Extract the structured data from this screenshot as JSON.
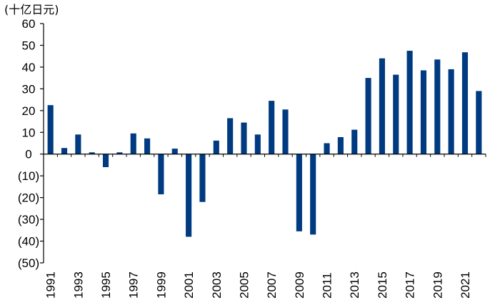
{
  "colors": {
    "bar": "#003A80",
    "axis": "#000000",
    "text": "#000000",
    "background": "#ffffff"
  },
  "chart_data": {
    "type": "bar",
    "title": "",
    "unit_label": "(十亿日元)",
    "xlabel": "",
    "ylabel": "",
    "ylim": [
      -50,
      60
    ],
    "y_ticks": [
      60,
      50,
      40,
      30,
      20,
      10,
      0,
      -10,
      -20,
      -30,
      -40,
      -50
    ],
    "y_tick_labels": [
      "60",
      "50",
      "40",
      "30",
      "20",
      "10",
      "0",
      "(10)",
      "(20)",
      "(30)",
      "(40)",
      "(50)"
    ],
    "grid": false,
    "legend": "none",
    "categories": [
      "1991",
      "1992",
      "1993",
      "1994",
      "1995",
      "1996",
      "1997",
      "1998",
      "1999",
      "2000",
      "2001",
      "2002",
      "2003",
      "2004",
      "2005",
      "2006",
      "2007",
      "2008",
      "2009",
      "2010",
      "2011",
      "2012",
      "2013",
      "2014",
      "2015",
      "2016",
      "2017",
      "2018",
      "2019",
      "2020",
      "2021",
      "2022"
    ],
    "x_tick_labels": [
      "1991",
      "",
      "1993",
      "",
      "1995",
      "",
      "1997",
      "",
      "1999",
      "",
      "2001",
      "",
      "2003",
      "",
      "2005",
      "",
      "2007",
      "",
      "2009",
      "",
      "2011",
      "",
      "2013",
      "",
      "2015",
      "",
      "2017",
      "",
      "2019",
      "",
      "2021",
      ""
    ],
    "series": [
      {
        "name": "value",
        "values": [
          22.5,
          2.8,
          9.0,
          0.8,
          -6.0,
          0.8,
          9.5,
          7.2,
          -18.5,
          2.5,
          -38.0,
          -22.0,
          6.2,
          16.5,
          14.5,
          9.0,
          24.5,
          20.5,
          -35.5,
          -37.0,
          5.0,
          7.8,
          11.2,
          35.0,
          44.0,
          36.5,
          47.5,
          38.5,
          43.5,
          39.0,
          46.8,
          29.0
        ]
      }
    ]
  }
}
